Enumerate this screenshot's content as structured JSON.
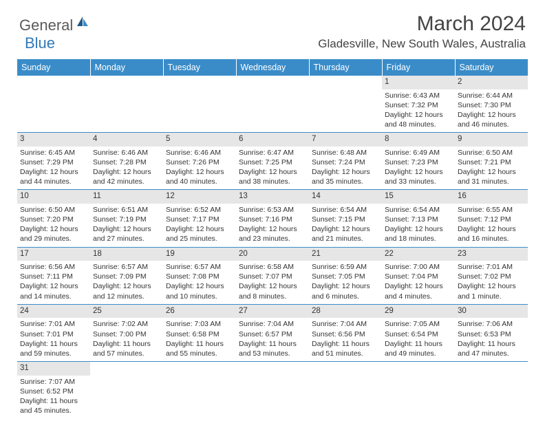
{
  "logo": {
    "general": "General",
    "blue": "Blue"
  },
  "title": "March 2024",
  "location": "Gladesville, New South Wales, Australia",
  "header_bg": "#3a8cc9",
  "header_fg": "#ffffff",
  "daynum_bg": "#e6e6e6",
  "border_color": "#3a8cc9",
  "font_family": "Arial, Helvetica, sans-serif",
  "cell_fontsize": 10.5,
  "dayheaders": [
    "Sunday",
    "Monday",
    "Tuesday",
    "Wednesday",
    "Thursday",
    "Friday",
    "Saturday"
  ],
  "weeks": [
    [
      null,
      null,
      null,
      null,
      null,
      {
        "n": "1",
        "sr": "Sunrise: 6:43 AM",
        "ss": "Sunset: 7:32 PM",
        "dl1": "Daylight: 12 hours",
        "dl2": "and 48 minutes."
      },
      {
        "n": "2",
        "sr": "Sunrise: 6:44 AM",
        "ss": "Sunset: 7:30 PM",
        "dl1": "Daylight: 12 hours",
        "dl2": "and 46 minutes."
      }
    ],
    [
      {
        "n": "3",
        "sr": "Sunrise: 6:45 AM",
        "ss": "Sunset: 7:29 PM",
        "dl1": "Daylight: 12 hours",
        "dl2": "and 44 minutes."
      },
      {
        "n": "4",
        "sr": "Sunrise: 6:46 AM",
        "ss": "Sunset: 7:28 PM",
        "dl1": "Daylight: 12 hours",
        "dl2": "and 42 minutes."
      },
      {
        "n": "5",
        "sr": "Sunrise: 6:46 AM",
        "ss": "Sunset: 7:26 PM",
        "dl1": "Daylight: 12 hours",
        "dl2": "and 40 minutes."
      },
      {
        "n": "6",
        "sr": "Sunrise: 6:47 AM",
        "ss": "Sunset: 7:25 PM",
        "dl1": "Daylight: 12 hours",
        "dl2": "and 38 minutes."
      },
      {
        "n": "7",
        "sr": "Sunrise: 6:48 AM",
        "ss": "Sunset: 7:24 PM",
        "dl1": "Daylight: 12 hours",
        "dl2": "and 35 minutes."
      },
      {
        "n": "8",
        "sr": "Sunrise: 6:49 AM",
        "ss": "Sunset: 7:23 PM",
        "dl1": "Daylight: 12 hours",
        "dl2": "and 33 minutes."
      },
      {
        "n": "9",
        "sr": "Sunrise: 6:50 AM",
        "ss": "Sunset: 7:21 PM",
        "dl1": "Daylight: 12 hours",
        "dl2": "and 31 minutes."
      }
    ],
    [
      {
        "n": "10",
        "sr": "Sunrise: 6:50 AM",
        "ss": "Sunset: 7:20 PM",
        "dl1": "Daylight: 12 hours",
        "dl2": "and 29 minutes."
      },
      {
        "n": "11",
        "sr": "Sunrise: 6:51 AM",
        "ss": "Sunset: 7:19 PM",
        "dl1": "Daylight: 12 hours",
        "dl2": "and 27 minutes."
      },
      {
        "n": "12",
        "sr": "Sunrise: 6:52 AM",
        "ss": "Sunset: 7:17 PM",
        "dl1": "Daylight: 12 hours",
        "dl2": "and 25 minutes."
      },
      {
        "n": "13",
        "sr": "Sunrise: 6:53 AM",
        "ss": "Sunset: 7:16 PM",
        "dl1": "Daylight: 12 hours",
        "dl2": "and 23 minutes."
      },
      {
        "n": "14",
        "sr": "Sunrise: 6:54 AM",
        "ss": "Sunset: 7:15 PM",
        "dl1": "Daylight: 12 hours",
        "dl2": "and 21 minutes."
      },
      {
        "n": "15",
        "sr": "Sunrise: 6:54 AM",
        "ss": "Sunset: 7:13 PM",
        "dl1": "Daylight: 12 hours",
        "dl2": "and 18 minutes."
      },
      {
        "n": "16",
        "sr": "Sunrise: 6:55 AM",
        "ss": "Sunset: 7:12 PM",
        "dl1": "Daylight: 12 hours",
        "dl2": "and 16 minutes."
      }
    ],
    [
      {
        "n": "17",
        "sr": "Sunrise: 6:56 AM",
        "ss": "Sunset: 7:11 PM",
        "dl1": "Daylight: 12 hours",
        "dl2": "and 14 minutes."
      },
      {
        "n": "18",
        "sr": "Sunrise: 6:57 AM",
        "ss": "Sunset: 7:09 PM",
        "dl1": "Daylight: 12 hours",
        "dl2": "and 12 minutes."
      },
      {
        "n": "19",
        "sr": "Sunrise: 6:57 AM",
        "ss": "Sunset: 7:08 PM",
        "dl1": "Daylight: 12 hours",
        "dl2": "and 10 minutes."
      },
      {
        "n": "20",
        "sr": "Sunrise: 6:58 AM",
        "ss": "Sunset: 7:07 PM",
        "dl1": "Daylight: 12 hours",
        "dl2": "and 8 minutes."
      },
      {
        "n": "21",
        "sr": "Sunrise: 6:59 AM",
        "ss": "Sunset: 7:05 PM",
        "dl1": "Daylight: 12 hours",
        "dl2": "and 6 minutes."
      },
      {
        "n": "22",
        "sr": "Sunrise: 7:00 AM",
        "ss": "Sunset: 7:04 PM",
        "dl1": "Daylight: 12 hours",
        "dl2": "and 4 minutes."
      },
      {
        "n": "23",
        "sr": "Sunrise: 7:01 AM",
        "ss": "Sunset: 7:02 PM",
        "dl1": "Daylight: 12 hours",
        "dl2": "and 1 minute."
      }
    ],
    [
      {
        "n": "24",
        "sr": "Sunrise: 7:01 AM",
        "ss": "Sunset: 7:01 PM",
        "dl1": "Daylight: 11 hours",
        "dl2": "and 59 minutes."
      },
      {
        "n": "25",
        "sr": "Sunrise: 7:02 AM",
        "ss": "Sunset: 7:00 PM",
        "dl1": "Daylight: 11 hours",
        "dl2": "and 57 minutes."
      },
      {
        "n": "26",
        "sr": "Sunrise: 7:03 AM",
        "ss": "Sunset: 6:58 PM",
        "dl1": "Daylight: 11 hours",
        "dl2": "and 55 minutes."
      },
      {
        "n": "27",
        "sr": "Sunrise: 7:04 AM",
        "ss": "Sunset: 6:57 PM",
        "dl1": "Daylight: 11 hours",
        "dl2": "and 53 minutes."
      },
      {
        "n": "28",
        "sr": "Sunrise: 7:04 AM",
        "ss": "Sunset: 6:56 PM",
        "dl1": "Daylight: 11 hours",
        "dl2": "and 51 minutes."
      },
      {
        "n": "29",
        "sr": "Sunrise: 7:05 AM",
        "ss": "Sunset: 6:54 PM",
        "dl1": "Daylight: 11 hours",
        "dl2": "and 49 minutes."
      },
      {
        "n": "30",
        "sr": "Sunrise: 7:06 AM",
        "ss": "Sunset: 6:53 PM",
        "dl1": "Daylight: 11 hours",
        "dl2": "and 47 minutes."
      }
    ],
    [
      {
        "n": "31",
        "sr": "Sunrise: 7:07 AM",
        "ss": "Sunset: 6:52 PM",
        "dl1": "Daylight: 11 hours",
        "dl2": "and 45 minutes."
      },
      null,
      null,
      null,
      null,
      null,
      null
    ]
  ]
}
